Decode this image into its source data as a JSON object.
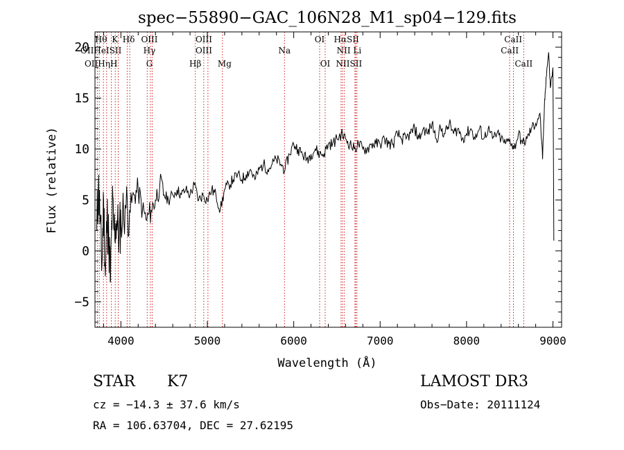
{
  "chart_data": {
    "type": "line",
    "title": "spec−55890−GAC_106N28_M1_sp04−129.fits",
    "xlabel": "Wavelength (Å)",
    "ylabel": "Flux (relative)",
    "xlim": [
      3700,
      9100
    ],
    "ylim": [
      -7.5,
      21.5
    ],
    "x_ticks": [
      4000,
      5000,
      6000,
      7000,
      8000,
      9000
    ],
    "y_ticks": [
      -5,
      0,
      5,
      10,
      15,
      20
    ],
    "x_tick_labels": [
      "4000",
      "5000",
      "6000",
      "7000",
      "8000",
      "9000"
    ],
    "y_tick_labels": [
      "−5",
      "0",
      "5",
      "10",
      "15",
      "20"
    ],
    "grid": false,
    "series": [
      {
        "name": "flux",
        "x": [
          3720,
          3740,
          3760,
          3780,
          3800,
          3820,
          3840,
          3860,
          3880,
          3900,
          3920,
          3950,
          3980,
          4000,
          4050,
          4100,
          4150,
          4200,
          4250,
          4300,
          4350,
          4400,
          4450,
          4500,
          4550,
          4600,
          4650,
          4700,
          4750,
          4800,
          4850,
          4900,
          4950,
          5000,
          5050,
          5100,
          5150,
          5200,
          5250,
          5300,
          5350,
          5400,
          5450,
          5500,
          5550,
          5600,
          5650,
          5700,
          5750,
          5800,
          5850,
          5900,
          5950,
          6000,
          6050,
          6100,
          6150,
          6200,
          6250,
          6300,
          6350,
          6400,
          6450,
          6500,
          6550,
          6600,
          6650,
          6700,
          6750,
          6800,
          6850,
          6900,
          6950,
          7000,
          7050,
          7100,
          7150,
          7200,
          7250,
          7300,
          7350,
          7400,
          7450,
          7500,
          7550,
          7600,
          7650,
          7700,
          7750,
          7800,
          7850,
          7900,
          7950,
          8000,
          8050,
          8100,
          8150,
          8200,
          8250,
          8300,
          8350,
          8400,
          8450,
          8500,
          8550,
          8600,
          8650,
          8700,
          8750,
          8800,
          8850,
          8880,
          8900,
          8920,
          8950,
          8970,
          9000,
          9010
        ],
        "y": [
          2.0,
          6.5,
          3.0,
          -1.5,
          5.0,
          -2.5,
          3.5,
          1.0,
          -3.0,
          4.5,
          2.0,
          3.0,
          1.5,
          3.0,
          4.5,
          4.0,
          5.5,
          6.0,
          4.0,
          3.0,
          4.0,
          5.0,
          6.5,
          5.5,
          5.0,
          5.5,
          6.0,
          5.5,
          6.0,
          5.5,
          6.5,
          5.0,
          5.5,
          5.0,
          6.0,
          5.5,
          4.0,
          6.0,
          6.5,
          7.0,
          7.5,
          7.0,
          7.5,
          8.0,
          7.0,
          8.0,
          8.5,
          8.0,
          8.5,
          9.0,
          8.5,
          8.0,
          9.5,
          10.5,
          10.0,
          9.5,
          9.0,
          9.5,
          10.0,
          9.5,
          9.5,
          10.5,
          10.5,
          11.0,
          11.5,
          11.0,
          10.5,
          10.0,
          10.5,
          10.0,
          10.0,
          10.5,
          10.5,
          10.5,
          11.0,
          10.5,
          10.5,
          11.5,
          11.0,
          11.0,
          11.5,
          12.0,
          11.0,
          12.0,
          11.5,
          12.5,
          11.0,
          12.0,
          11.5,
          12.5,
          11.5,
          12.0,
          11.0,
          11.5,
          12.0,
          11.0,
          12.0,
          11.0,
          12.0,
          11.0,
          11.5,
          11.0,
          10.5,
          11.0,
          10.0,
          11.5,
          10.5,
          11.0,
          12.0,
          12.5,
          13.5,
          9.0,
          14.0,
          17.0,
          19.5,
          16.0,
          18.0,
          1.0
        ]
      }
    ],
    "lines": [
      {
        "x": 3727,
        "labels": [
          "OII"
        ]
      },
      {
        "x": 3750,
        "labels": [
          "Hθ"
        ]
      },
      {
        "x": 3798,
        "labels": [
          "HeI"
        ]
      },
      {
        "x": 3835,
        "labels": [
          "Hη"
        ]
      },
      {
        "x": 3889,
        "labels": [
          "HeI"
        ]
      },
      {
        "x": 3934,
        "labels": [
          "K"
        ]
      },
      {
        "x": 3969,
        "labels": [
          "H"
        ]
      },
      {
        "x": 4072,
        "labels": [
          "SII"
        ]
      },
      {
        "x": 4102,
        "labels": [
          "Hδ"
        ]
      },
      {
        "x": 4304,
        "labels": [
          "G"
        ]
      },
      {
        "x": 4341,
        "labels": [
          "Hγ"
        ]
      },
      {
        "x": 4363,
        "labels": [
          "OIII"
        ]
      },
      {
        "x": 4861,
        "labels": [
          "Hβ"
        ]
      },
      {
        "x": 4959,
        "labels": [
          "OIII"
        ]
      },
      {
        "x": 5007,
        "labels": [
          "OIII"
        ]
      },
      {
        "x": 5175,
        "labels": [
          "Mg"
        ]
      },
      {
        "x": 5893,
        "labels": [
          "Na"
        ]
      },
      {
        "x": 6300,
        "labels": [
          "OI"
        ]
      },
      {
        "x": 6364,
        "labels": [
          "OI"
        ]
      },
      {
        "x": 6548,
        "labels": [
          "NII"
        ]
      },
      {
        "x": 6563,
        "labels": [
          "Hα"
        ]
      },
      {
        "x": 6584,
        "labels": [
          "NII"
        ]
      },
      {
        "x": 6708,
        "labels": [
          "Li"
        ]
      },
      {
        "x": 6717,
        "labels": [
          "SII"
        ]
      },
      {
        "x": 6731,
        "labels": [
          "SII"
        ]
      },
      {
        "x": 8498,
        "labels": [
          "CaII"
        ]
      },
      {
        "x": 8542,
        "labels": [
          "CaII"
        ]
      },
      {
        "x": 8662,
        "labels": [
          "CaII"
        ]
      }
    ],
    "line_label_rows": [
      [
        "Hθ",
        "K",
        "Hδ",
        "OIII",
        "OIII",
        "OI",
        "HαSII",
        "CaII"
      ],
      [
        "OIIHeISII",
        "Hγ",
        "OIII",
        "Na",
        "NII Li",
        "CaII"
      ],
      [
        "OIIHηH",
        "G",
        "Hβ",
        "Mg",
        "OI",
        "NIISII",
        "CaII"
      ]
    ]
  },
  "info": {
    "object_class": "STAR",
    "subclass": "K7",
    "survey": "LAMOST DR3",
    "cz": "cz = −14.3 ± 37.6 km/s",
    "obs_date": "Obs−Date: 20111124",
    "coords": "RA = 106.63704, DEC =  27.62195"
  }
}
